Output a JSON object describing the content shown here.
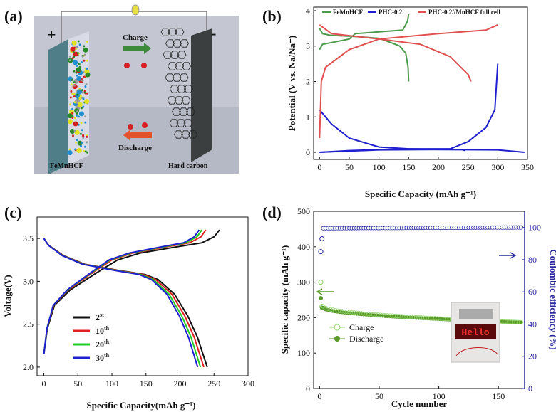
{
  "panels": {
    "a": "(a)",
    "b": "(b)",
    "c": "(c)",
    "d": "(d)"
  },
  "schematic": {
    "plus": "+",
    "minus": "-",
    "charge": "Charge",
    "discharge": "Discharge",
    "cathode": "FeMnHCF",
    "anode": "Hard carbon",
    "colors": {
      "charge_arrow": "#3d8a3a",
      "discharge_arrow": "#e0532d",
      "bg": "#c9ccd6"
    }
  },
  "chart_data": [
    {
      "id": "b",
      "type": "line",
      "xlabel": "Specific Capacity (mAh g⁻¹)",
      "ylabel": "Potential (V vs. Na/Na⁺)",
      "xlim": [
        -10,
        350
      ],
      "ylim": [
        -0.2,
        4.1
      ],
      "xticks": [
        0,
        50,
        100,
        150,
        200,
        250,
        300,
        350
      ],
      "yticks": [
        0,
        1,
        2,
        3,
        4
      ],
      "legend_position": "top",
      "series": [
        {
          "name": "FeMnHCF",
          "color": "#4a9a4a",
          "curves": [
            [
              [
                0,
                3.5
              ],
              [
                5,
                3.35
              ],
              [
                20,
                3.3
              ],
              [
                60,
                3.27
              ],
              [
                100,
                3.22
              ],
              [
                120,
                3.1
              ],
              [
                135,
                3.0
              ],
              [
                145,
                2.8
              ],
              [
                149,
                2.4
              ],
              [
                150,
                2.0
              ]
            ],
            [
              [
                0,
                2.9
              ],
              [
                5,
                3.05
              ],
              [
                20,
                3.1
              ],
              [
                50,
                3.2
              ],
              [
                60,
                3.35
              ],
              [
                100,
                3.4
              ],
              [
                140,
                3.45
              ],
              [
                148,
                3.7
              ],
              [
                150,
                3.9
              ]
            ]
          ]
        },
        {
          "name": "PHC-0.2",
          "color": "#1f1fd0",
          "curves": [
            [
              [
                0,
                1.2
              ],
              [
                5,
                1.1
              ],
              [
                20,
                0.8
              ],
              [
                50,
                0.4
              ],
              [
                100,
                0.15
              ],
              [
                150,
                0.1
              ],
              [
                200,
                0.08
              ],
              [
                240,
                0.08
              ],
              [
                245,
                0.05
              ]
            ],
            [
              [
                0,
                0.0
              ],
              [
                50,
                0.05
              ],
              [
                150,
                0.1
              ],
              [
                220,
                0.1
              ],
              [
                250,
                0.3
              ],
              [
                280,
                0.7
              ],
              [
                295,
                1.2
              ],
              [
                300,
                2.5
              ]
            ],
            [
              [
                0,
                0.0
              ],
              [
                100,
                0.07
              ],
              [
                200,
                0.08
              ],
              [
                300,
                0.07
              ],
              [
                345,
                0.0
              ]
            ]
          ]
        },
        {
          "name": "PHC-0.2//MnHCF full cell",
          "color": "#e05050",
          "curves": [
            [
              [
                0,
                0.4
              ],
              [
                3,
                2.0
              ],
              [
                10,
                2.4
              ],
              [
                50,
                2.9
              ],
              [
                100,
                3.2
              ],
              [
                200,
                3.35
              ],
              [
                280,
                3.45
              ],
              [
                300,
                3.6
              ]
            ],
            [
              [
                0,
                3.6
              ],
              [
                20,
                3.35
              ],
              [
                100,
                3.2
              ],
              [
                170,
                3.05
              ],
              [
                220,
                2.7
              ],
              [
                250,
                2.2
              ],
              [
                255,
                2.0
              ]
            ]
          ]
        }
      ]
    },
    {
      "id": "c",
      "type": "line",
      "xlabel": "Specific Capacity(mAh g⁻¹)",
      "ylabel": "Voltage(V)",
      "xlim": [
        -10,
        300
      ],
      "ylim": [
        1.9,
        3.75
      ],
      "xticks": [
        0,
        50,
        100,
        150,
        200,
        250,
        300
      ],
      "yticks": [
        2.0,
        2.5,
        3.0,
        3.5
      ],
      "legend_position": "lower-left",
      "series": [
        {
          "name": "2",
          "sup": "st",
          "color": "#111111",
          "charge_end": 258,
          "discharge_end": 240
        },
        {
          "name": "10",
          "sup": "th",
          "color": "#e02020",
          "charge_end": 238,
          "discharge_end": 235
        },
        {
          "name": "20",
          "sup": "th",
          "color": "#22cc22",
          "charge_end": 232,
          "discharge_end": 230
        },
        {
          "name": "30",
          "sup": "th",
          "color": "#1f1fd0",
          "charge_end": 228,
          "discharge_end": 226
        }
      ]
    },
    {
      "id": "d",
      "type": "scatter",
      "xlabel": "Cycle number",
      "ylabel": "Specific capacity (mAh g⁻¹)",
      "y2label": "Coulombic efficiency (%)",
      "xlim": [
        -5,
        172
      ],
      "ylim": [
        0,
        500
      ],
      "y2lim": [
        0,
        110
      ],
      "xticks": [
        0,
        50,
        100,
        150
      ],
      "yticks": [
        0,
        100,
        200,
        300,
        400,
        500
      ],
      "y2ticks": [
        0,
        20,
        40,
        60,
        80,
        100
      ],
      "legend_position": "lower-left",
      "series": [
        {
          "name": "Charge",
          "color": "#8fd46a",
          "first": [
            [
              1,
              300
            ],
            [
              2,
              232
            ]
          ],
          "start": 232,
          "end": 187
        },
        {
          "name": "Discharge",
          "color": "#5a9a28",
          "first": [
            [
              1,
              255
            ],
            [
              2,
              228
            ]
          ],
          "start": 228,
          "end": 186
        },
        {
          "name": "Coulombic efficiency",
          "color": "#2a2aa0",
          "first": [
            [
              1,
              85
            ],
            [
              2,
              93
            ]
          ],
          "start": 99.5,
          "end": 100
        }
      ],
      "inset_text": "Hello"
    }
  ]
}
